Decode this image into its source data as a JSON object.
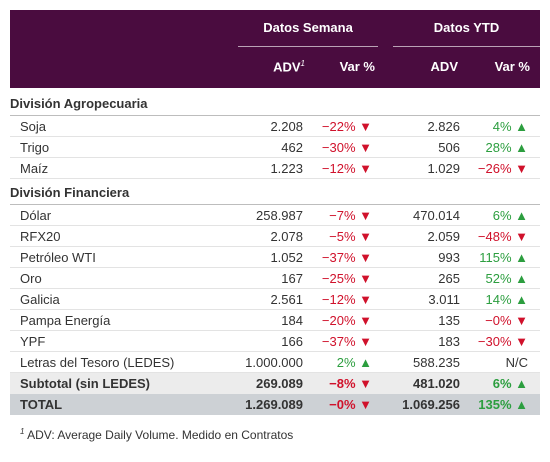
{
  "header": {
    "groups": [
      "Datos Semana",
      "Datos YTD"
    ],
    "columns": [
      "ADV",
      "Var %",
      "ADV",
      "Var %"
    ],
    "footnote_mark": "1"
  },
  "sections": [
    {
      "title": "División Agropecuaria",
      "rows": [
        [
          "Soja",
          "2.208",
          "−22% ▼",
          "2.826",
          "4% ▲"
        ],
        [
          "Trigo",
          "462",
          "−30% ▼",
          "506",
          "28% ▲"
        ],
        [
          "Maíz",
          "1.223",
          "−12% ▼",
          "1.029",
          "−26% ▼"
        ]
      ]
    },
    {
      "title": "División Financiera",
      "rows": [
        [
          "Dólar",
          "258.987",
          "−7% ▼",
          "470.014",
          "6% ▲"
        ],
        [
          "RFX20",
          "2.078",
          "−5% ▼",
          "2.059",
          "−48% ▼"
        ],
        [
          "Petróleo WTI",
          "1.052",
          "−37% ▼",
          "993",
          "115% ▲"
        ],
        [
          "Oro",
          "167",
          "−25% ▼",
          "265",
          "52% ▲"
        ],
        [
          "Galicia",
          "2.561",
          "−12% ▼",
          "3.011",
          "14% ▲"
        ],
        [
          "Pampa Energía",
          "184",
          "−20% ▼",
          "135",
          "−0% ▼"
        ],
        [
          "YPF",
          "166",
          "−37% ▼",
          "183",
          "−30% ▼"
        ],
        [
          "Letras del Tesoro (LEDES)",
          "1.000.000",
          "2% ▲",
          "588.235",
          "N/C"
        ]
      ]
    }
  ],
  "subtotal": [
    "Subtotal (sin LEDES)",
    "269.089",
    "−8% ▼",
    "481.020",
    "6% ▲"
  ],
  "total": [
    "TOTAL",
    "1.269.089",
    "−0% ▼",
    "1.069.256",
    "135% ▲"
  ],
  "footnote": "ADV: Average Daily Volume. Medido en Contratos"
}
